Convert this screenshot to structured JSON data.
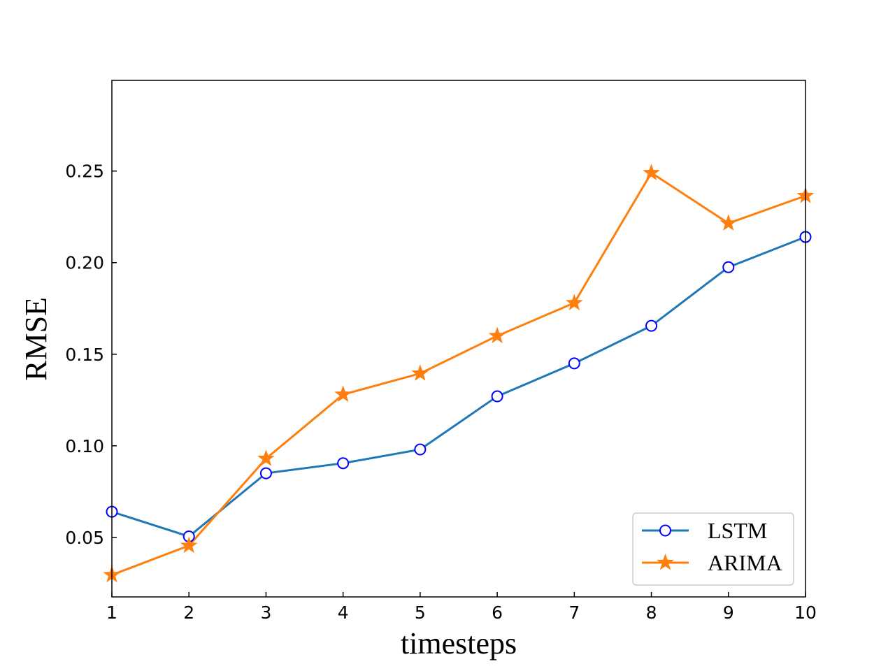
{
  "chart_data": {
    "type": "line",
    "title": "",
    "xlabel": "timesteps",
    "ylabel": "RMSE",
    "xlim": [
      1,
      10
    ],
    "ylim": [
      0.0175,
      0.2995
    ],
    "x": [
      1,
      2,
      3,
      4,
      5,
      6,
      7,
      8,
      9,
      10
    ],
    "xticks": [
      "1",
      "2",
      "3",
      "4",
      "5",
      "6",
      "7",
      "8",
      "9",
      "10"
    ],
    "yticks": [
      0.05,
      0.1,
      0.15,
      0.2,
      0.25
    ],
    "ytick_labels": [
      "0.05",
      "0.10",
      "0.15",
      "0.20",
      "0.25"
    ],
    "grid": false,
    "legend_position": "lower-right",
    "series": [
      {
        "name": "LSTM",
        "color": "#1f77b4",
        "marker": "circle",
        "marker_edge": "#0000ff",
        "values": [
          0.064,
          0.0505,
          0.085,
          0.0905,
          0.098,
          0.127,
          0.145,
          0.1655,
          0.1975,
          0.214
        ]
      },
      {
        "name": "ARIMA",
        "color": "#ff7f0e",
        "marker": "star",
        "values": [
          0.0295,
          0.0455,
          0.093,
          0.128,
          0.1395,
          0.16,
          0.178,
          0.249,
          0.2215,
          0.2365
        ]
      }
    ]
  }
}
